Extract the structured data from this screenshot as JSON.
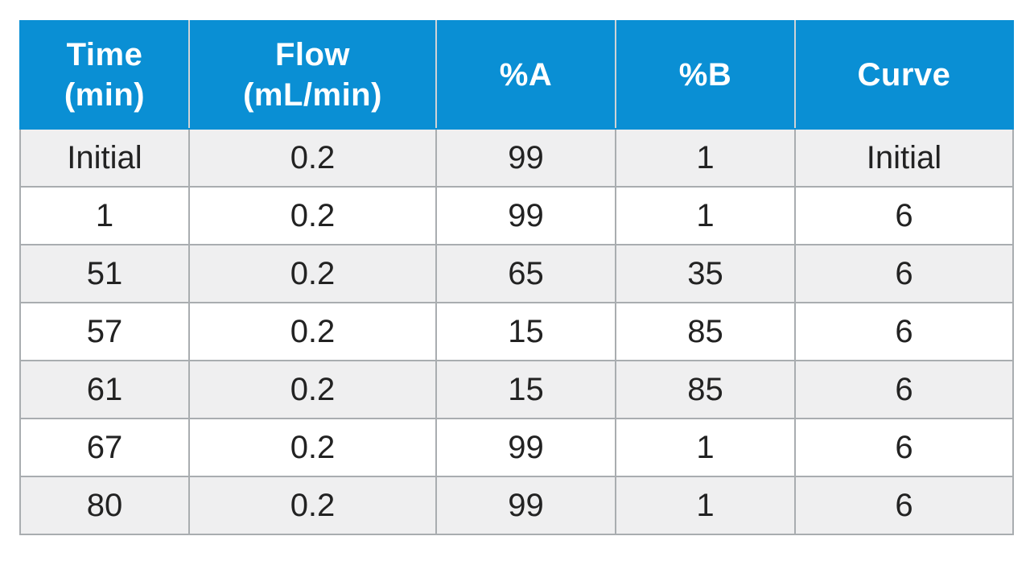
{
  "table": {
    "headers": [
      {
        "line1": "Time",
        "line2": "(min)"
      },
      {
        "line1": "Flow",
        "line2": "(mL/min)"
      },
      {
        "line1": "%A",
        "line2": ""
      },
      {
        "line1": "%B",
        "line2": ""
      },
      {
        "line1": "Curve",
        "line2": ""
      }
    ],
    "rows": [
      [
        "Initial",
        "0.2",
        "99",
        "1",
        "Initial"
      ],
      [
        "1",
        "0.2",
        "99",
        "1",
        "6"
      ],
      [
        "51",
        "0.2",
        "65",
        "35",
        "6"
      ],
      [
        "57",
        "0.2",
        "15",
        "85",
        "6"
      ],
      [
        "61",
        "0.2",
        "15",
        "85",
        "6"
      ],
      [
        "67",
        "0.2",
        "99",
        "1",
        "6"
      ],
      [
        "80",
        "0.2",
        "99",
        "1",
        "6"
      ]
    ],
    "colors": {
      "header_bg": "#0a8fd4",
      "header_text": "#ffffff",
      "row_alt_bg": "#efeff0",
      "row_bg": "#ffffff",
      "border": "#a9adb0"
    }
  }
}
